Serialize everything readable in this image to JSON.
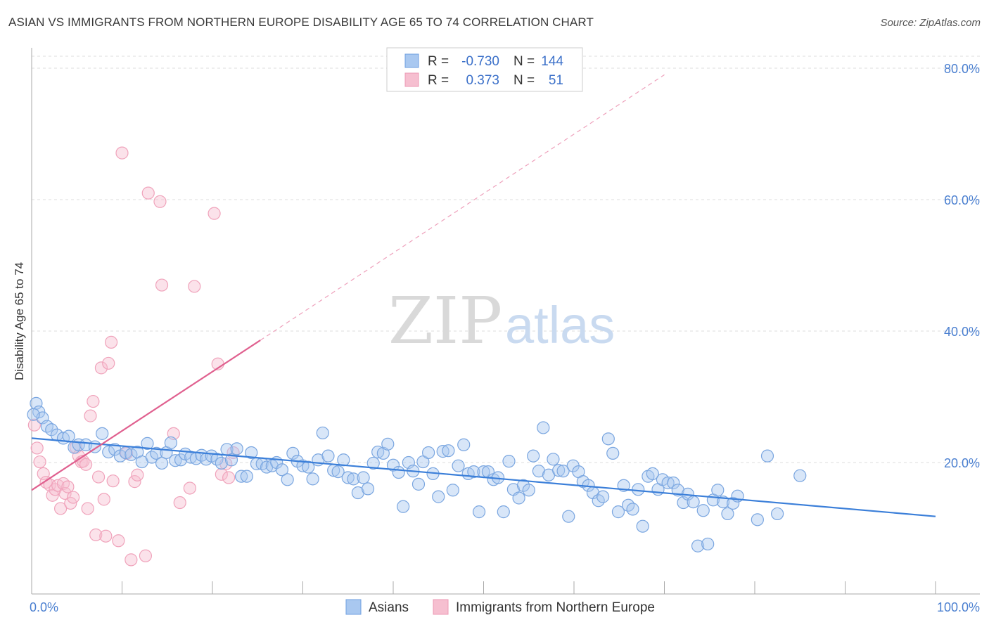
{
  "title": "ASIAN VS IMMIGRANTS FROM NORTHERN EUROPE DISABILITY AGE 65 TO 74 CORRELATION CHART",
  "source": "Source: ZipAtlas.com",
  "watermark": {
    "zip": "ZIP",
    "atlas": "atlas"
  },
  "legend_box": [
    {
      "r_label": "R =",
      "r_value": "-0.730",
      "n_label": "N =",
      "n_value": "144",
      "color": "#7aa6e0"
    },
    {
      "r_label": "R =",
      "r_value": "0.373",
      "n_label": "N =",
      "n_value": "51",
      "color": "#f0a3bb"
    }
  ],
  "bottom_legend": [
    {
      "label": "Asians",
      "color": "#7aa6e0"
    },
    {
      "label": "Immigrants from Northern Europe",
      "color": "#f0a3bb"
    }
  ],
  "colors": {
    "blue": "#3b7fd9",
    "pink": "#e0608f",
    "blue_fill": "#a9c8f0",
    "pink_fill": "#f6bfd0"
  },
  "chart_data": {
    "type": "scatter",
    "title": "ASIAN VS IMMIGRANTS FROM NORTHERN EUROPE DISABILITY AGE 65 TO 74 CORRELATION CHART",
    "xlabel": "",
    "ylabel": "Disability Age 65 to 74",
    "xlim": [
      0,
      100
    ],
    "ylim": [
      0,
      80
    ],
    "x_tick_labels": [
      "0.0%",
      "100.0%"
    ],
    "y_ticks": [
      20,
      40,
      60,
      80
    ],
    "y_tick_labels": [
      "20.0%",
      "40.0%",
      "60.0%",
      "80.0%"
    ],
    "grid": true,
    "series": [
      {
        "name": "Asians",
        "color": "#3b7fd9",
        "trend": {
          "x": [
            0,
            100
          ],
          "y": [
            23.7,
            11.8
          ]
        },
        "points": [
          [
            0.5,
            29.0
          ],
          [
            0.8,
            27.7
          ],
          [
            1.2,
            26.8
          ],
          [
            1.7,
            25.5
          ],
          [
            2.2,
            25.0
          ],
          [
            2.8,
            24.2
          ],
          [
            3.5,
            23.7
          ],
          [
            4.1,
            24.0
          ],
          [
            4.7,
            22.3
          ],
          [
            5.2,
            22.7
          ],
          [
            6.0,
            22.7
          ],
          [
            7.0,
            22.4
          ],
          [
            7.8,
            24.4
          ],
          [
            8.5,
            21.6
          ],
          [
            9.2,
            22.0
          ],
          [
            9.8,
            21.0
          ],
          [
            10.4,
            21.5
          ],
          [
            11.0,
            21.2
          ],
          [
            11.7,
            21.6
          ],
          [
            12.2,
            20.1
          ],
          [
            12.8,
            22.9
          ],
          [
            13.3,
            20.8
          ],
          [
            13.8,
            21.4
          ],
          [
            14.4,
            19.9
          ],
          [
            14.9,
            21.5
          ],
          [
            15.4,
            23.0
          ],
          [
            15.9,
            20.3
          ],
          [
            16.5,
            20.4
          ],
          [
            17.0,
            21.3
          ],
          [
            17.6,
            20.8
          ],
          [
            18.2,
            20.6
          ],
          [
            18.8,
            21.1
          ],
          [
            19.3,
            20.5
          ],
          [
            19.9,
            21.0
          ],
          [
            20.5,
            20.5
          ],
          [
            21.0,
            19.9
          ],
          [
            21.6,
            22.0
          ],
          [
            22.1,
            20.4
          ],
          [
            22.7,
            22.1
          ],
          [
            23.2,
            17.9
          ],
          [
            23.8,
            17.9
          ],
          [
            24.3,
            21.5
          ],
          [
            24.9,
            19.8
          ],
          [
            25.5,
            19.8
          ],
          [
            26.0,
            19.3
          ],
          [
            26.6,
            19.5
          ],
          [
            27.1,
            20.0
          ],
          [
            27.7,
            18.9
          ],
          [
            28.3,
            17.4
          ],
          [
            28.9,
            21.4
          ],
          [
            29.4,
            20.2
          ],
          [
            30.0,
            19.5
          ],
          [
            30.6,
            19.3
          ],
          [
            31.1,
            17.5
          ],
          [
            31.7,
            20.4
          ],
          [
            32.2,
            24.5
          ],
          [
            32.8,
            21.0
          ],
          [
            33.4,
            18.8
          ],
          [
            33.9,
            18.6
          ],
          [
            34.5,
            20.4
          ],
          [
            35.0,
            17.7
          ],
          [
            35.6,
            17.5
          ],
          [
            36.1,
            15.4
          ],
          [
            36.7,
            17.7
          ],
          [
            37.2,
            16.0
          ],
          [
            37.8,
            19.9
          ],
          [
            38.3,
            21.6
          ],
          [
            38.9,
            21.4
          ],
          [
            39.4,
            22.8
          ],
          [
            40.0,
            19.6
          ],
          [
            40.6,
            18.5
          ],
          [
            41.1,
            13.3
          ],
          [
            41.7,
            20.0
          ],
          [
            42.2,
            18.7
          ],
          [
            42.8,
            16.7
          ],
          [
            43.3,
            20.1
          ],
          [
            43.9,
            21.5
          ],
          [
            44.4,
            18.3
          ],
          [
            45.0,
            14.8
          ],
          [
            45.5,
            21.7
          ],
          [
            46.1,
            21.8
          ],
          [
            46.6,
            15.8
          ],
          [
            47.2,
            19.5
          ],
          [
            47.8,
            22.7
          ],
          [
            48.3,
            18.3
          ],
          [
            48.9,
            18.6
          ],
          [
            49.5,
            12.5
          ],
          [
            50.0,
            18.6
          ],
          [
            50.5,
            18.6
          ],
          [
            51.1,
            17.4
          ],
          [
            51.6,
            17.7
          ],
          [
            52.2,
            12.5
          ],
          [
            52.8,
            20.2
          ],
          [
            53.3,
            15.9
          ],
          [
            53.9,
            14.6
          ],
          [
            54.4,
            16.5
          ],
          [
            55.0,
            15.8
          ],
          [
            55.5,
            21.0
          ],
          [
            56.1,
            18.7
          ],
          [
            56.6,
            25.3
          ],
          [
            57.2,
            18.1
          ],
          [
            57.7,
            20.5
          ],
          [
            58.3,
            18.8
          ],
          [
            58.8,
            18.7
          ],
          [
            59.4,
            11.8
          ],
          [
            59.9,
            19.5
          ],
          [
            60.5,
            18.6
          ],
          [
            61.0,
            17.1
          ],
          [
            61.6,
            16.5
          ],
          [
            62.1,
            15.4
          ],
          [
            62.7,
            14.2
          ],
          [
            63.2,
            14.8
          ],
          [
            63.8,
            23.6
          ],
          [
            64.3,
            21.4
          ],
          [
            64.9,
            12.5
          ],
          [
            65.5,
            16.5
          ],
          [
            66.0,
            13.5
          ],
          [
            66.5,
            12.9
          ],
          [
            67.1,
            15.9
          ],
          [
            67.6,
            10.3
          ],
          [
            68.2,
            17.9
          ],
          [
            68.7,
            18.3
          ],
          [
            69.3,
            15.9
          ],
          [
            69.8,
            17.4
          ],
          [
            70.4,
            16.9
          ],
          [
            71.0,
            16.9
          ],
          [
            71.5,
            15.8
          ],
          [
            72.1,
            13.9
          ],
          [
            72.6,
            15.2
          ],
          [
            73.2,
            14.0
          ],
          [
            73.7,
            7.3
          ],
          [
            74.3,
            12.7
          ],
          [
            74.8,
            7.6
          ],
          [
            75.4,
            14.3
          ],
          [
            75.9,
            15.8
          ],
          [
            76.5,
            14.0
          ],
          [
            77.0,
            12.2
          ],
          [
            77.6,
            13.8
          ],
          [
            78.1,
            14.9
          ],
          [
            80.3,
            11.3
          ],
          [
            81.4,
            21.0
          ],
          [
            82.5,
            12.2
          ],
          [
            85.0,
            18.0
          ],
          [
            0.2,
            27.3
          ]
        ]
      },
      {
        "name": "Immigrants from Northern Europe",
        "color": "#e0608f",
        "trend": {
          "x": [
            0,
            25.3
          ],
          "y": [
            15.8,
            38.6
          ]
        },
        "trend_dashed": {
          "x": [
            25.3,
            70
          ],
          "y": [
            38.6,
            79.0
          ]
        },
        "points": [
          [
            0.3,
            25.7
          ],
          [
            0.6,
            22.2
          ],
          [
            0.9,
            20.1
          ],
          [
            1.3,
            18.3
          ],
          [
            1.6,
            17.0
          ],
          [
            2.0,
            16.6
          ],
          [
            2.3,
            15.0
          ],
          [
            2.6,
            15.9
          ],
          [
            2.9,
            16.5
          ],
          [
            3.2,
            13.0
          ],
          [
            3.5,
            16.8
          ],
          [
            3.7,
            15.3
          ],
          [
            4.0,
            16.3
          ],
          [
            4.3,
            13.8
          ],
          [
            4.6,
            14.7
          ],
          [
            4.9,
            22.3
          ],
          [
            5.2,
            21.0
          ],
          [
            5.5,
            20.1
          ],
          [
            5.7,
            20.2
          ],
          [
            6.0,
            19.7
          ],
          [
            6.2,
            13.0
          ],
          [
            6.5,
            27.1
          ],
          [
            6.8,
            29.3
          ],
          [
            7.1,
            9.0
          ],
          [
            7.4,
            17.8
          ],
          [
            7.7,
            34.4
          ],
          [
            8.0,
            14.4
          ],
          [
            8.2,
            8.8
          ],
          [
            8.5,
            35.1
          ],
          [
            8.8,
            38.3
          ],
          [
            9.0,
            17.2
          ],
          [
            9.6,
            8.1
          ],
          [
            10.0,
            67.1
          ],
          [
            10.5,
            21.4
          ],
          [
            11.0,
            5.2
          ],
          [
            11.4,
            17.1
          ],
          [
            11.7,
            18.1
          ],
          [
            12.6,
            5.8
          ],
          [
            12.9,
            61.0
          ],
          [
            14.2,
            59.7
          ],
          [
            14.4,
            47.0
          ],
          [
            15.7,
            24.4
          ],
          [
            16.4,
            13.9
          ],
          [
            17.5,
            16.1
          ],
          [
            18.0,
            46.8
          ],
          [
            20.2,
            57.9
          ],
          [
            20.6,
            35.0
          ],
          [
            21.0,
            18.2
          ],
          [
            21.5,
            19.8
          ],
          [
            21.8,
            17.7
          ],
          [
            22.3,
            21.5
          ]
        ]
      }
    ]
  }
}
